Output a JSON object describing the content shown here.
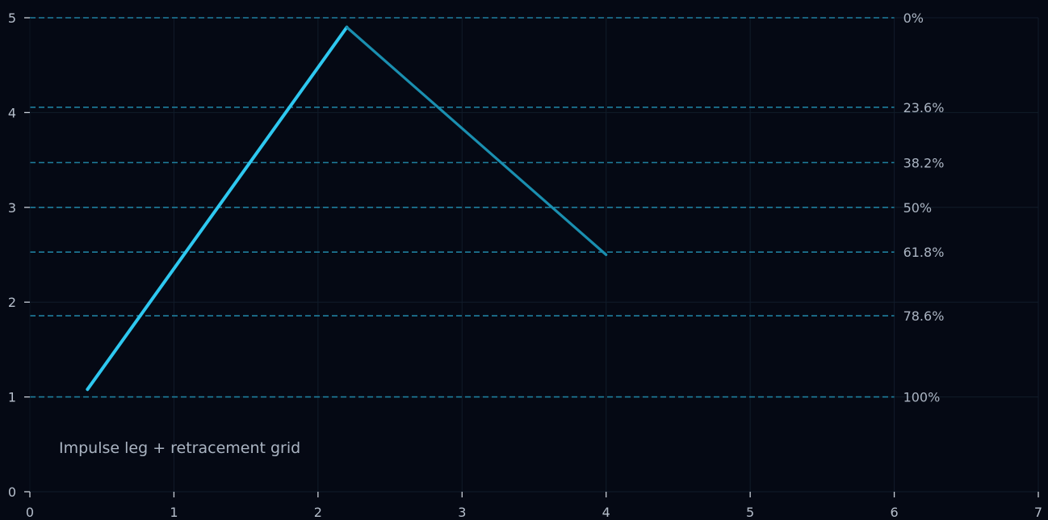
{
  "chart_data": {
    "type": "line",
    "title": "",
    "xlabel": "",
    "ylabel": "",
    "xlim": [
      0,
      7
    ],
    "ylim": [
      0,
      5
    ],
    "xticks": [
      "0",
      "1",
      "2",
      "3",
      "4",
      "5",
      "6",
      "7"
    ],
    "yticks": [
      "0",
      "1",
      "2",
      "3",
      "4",
      "5"
    ],
    "grid": true,
    "annotation": "Impulse leg + retracement grid",
    "series": [
      {
        "role": "impulse",
        "x": [
          0.4,
          2.2
        ],
        "y": [
          1.08,
          4.9
        ],
        "color": "#2ec8f0"
      },
      {
        "role": "retracement",
        "x": [
          2.2,
          4.0
        ],
        "y": [
          4.9,
          2.5
        ],
        "color": "#1a8fb0"
      }
    ],
    "levels": [
      {
        "label": "0%",
        "y": 5.0
      },
      {
        "label": "23.6%",
        "y": 4.056
      },
      {
        "label": "38.2%",
        "y": 3.472
      },
      {
        "label": "50%",
        "y": 3.0
      },
      {
        "label": "61.8%",
        "y": 2.528
      },
      {
        "label": "78.6%",
        "y": 1.856
      },
      {
        "label": "100%",
        "y": 1.0
      }
    ],
    "level_color": "#1f7f9e",
    "grid_color": "#111c2a",
    "axis_color": "#c8cfd8"
  }
}
